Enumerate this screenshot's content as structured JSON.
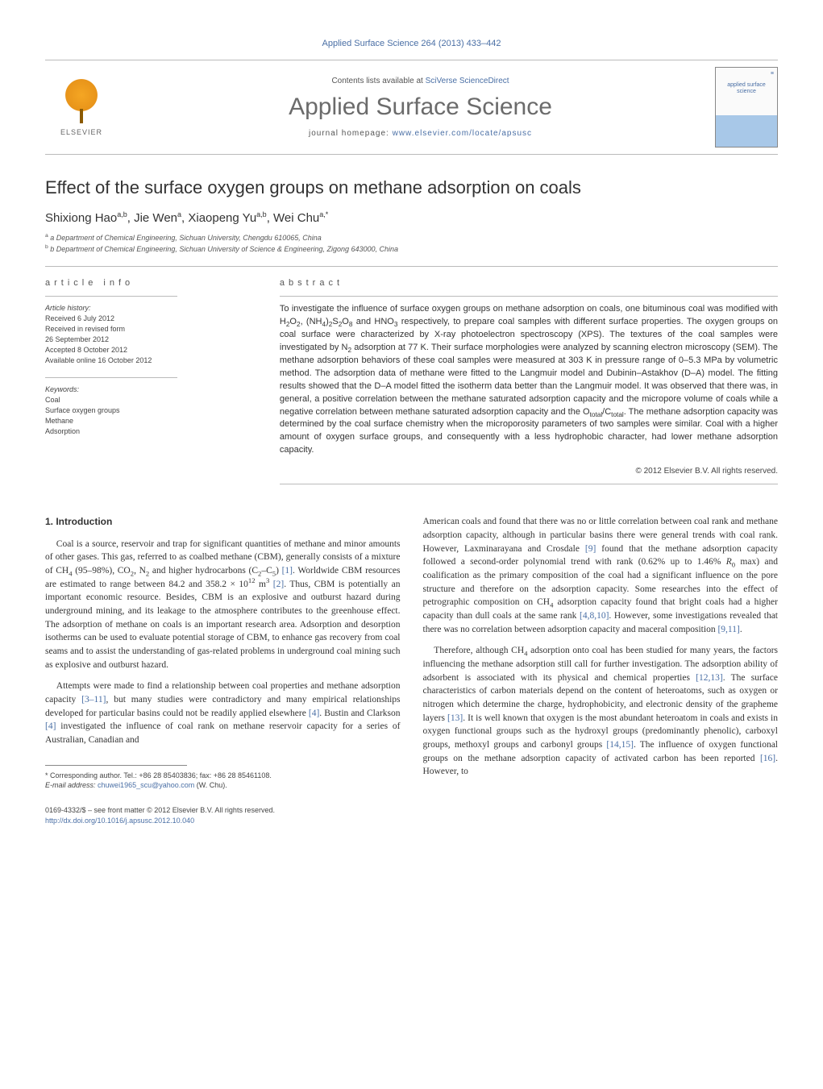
{
  "colors": {
    "link": "#4a6fa5",
    "text": "#333333",
    "muted": "#555555",
    "rule": "#bbbbbb",
    "elsevier_orange": "#f5a623"
  },
  "header": {
    "citation": "Applied Surface Science 264 (2013) 433–442",
    "contents_prefix": "Contents lists available at",
    "contents_link": "SciVerse ScienceDirect",
    "journal_title": "Applied Surface Science",
    "homepage_prefix": "journal homepage:",
    "homepage_url": "www.elsevier.com/locate/apsusc",
    "publisher": "ELSEVIER",
    "cover_text": "applied surface science"
  },
  "article": {
    "title": "Effect of the surface oxygen groups on methane adsorption on coals",
    "authors_html": "Shixiong Hao<sup>a,b</sup>, Jie Wen<sup>a</sup>, Xiaopeng Yu<sup>a,b</sup>, Wei Chu<sup>a,*</sup>",
    "affiliations": [
      "a Department of Chemical Engineering, Sichuan University, Chengdu 610065, China",
      "b Department of Chemical Engineering, Sichuan University of Science & Engineering, Zigong 643000, China"
    ]
  },
  "info": {
    "label": "article info",
    "history_label": "Article history:",
    "history": [
      "Received 6 July 2012",
      "Received in revised form",
      "26 September 2012",
      "Accepted 8 October 2012",
      "Available online 16 October 2012"
    ],
    "keywords_label": "Keywords:",
    "keywords": [
      "Coal",
      "Surface oxygen groups",
      "Methane",
      "Adsorption"
    ]
  },
  "abstract": {
    "label": "abstract",
    "text": "To investigate the influence of surface oxygen groups on methane adsorption on coals, one bituminous coal was modified with H2O2, (NH4)2S2O8 and HNO3 respectively, to prepare coal samples with different surface properties. The oxygen groups on coal surface were characterized by X-ray photoelectron spectroscopy (XPS). The textures of the coal samples were investigated by N2 adsorption at 77 K. Their surface morphologies were analyzed by scanning electron microscopy (SEM). The methane adsorption behaviors of these coal samples were measured at 303 K in pressure range of 0–5.3 MPa by volumetric method. The adsorption data of methane were fitted to the Langmuir model and Dubinin–Astakhov (D–A) model. The fitting results showed that the D–A model fitted the isotherm data better than the Langmuir model. It was observed that there was, in general, a positive correlation between the methane saturated adsorption capacity and the micropore volume of coals while a negative correlation between methane saturated adsorption capacity and the Ototal/Ctotal. The methane adsorption capacity was determined by the coal surface chemistry when the microporosity parameters of two samples were similar. Coal with a higher amount of oxygen surface groups, and consequently with a less hydrophobic character, had lower methane adsorption capacity.",
    "copyright": "© 2012 Elsevier B.V. All rights reserved."
  },
  "body": {
    "section_heading": "1.  Introduction",
    "left_paras": [
      "Coal is a source, reservoir and trap for significant quantities of methane and minor amounts of other gases. This gas, referred to as coalbed methane (CBM), generally consists of a mixture of CH4 (95–98%), CO2, N2 and higher hydrocarbons (C2–C5) [1]. Worldwide CBM resources are estimated to range between 84.2 and 358.2 × 10^12 m^3 [2]. Thus, CBM is potentially an important economic resource. Besides, CBM is an explosive and outburst hazard during underground mining, and its leakage to the atmosphere contributes to the greenhouse effect. The adsorption of methane on coals is an important research area. Adsorption and desorption isotherms can be used to evaluate potential storage of CBM, to enhance gas recovery from coal seams and to assist the understanding of gas-related problems in underground coal mining such as explosive and outburst hazard.",
      "Attempts were made to find a relationship between coal properties and methane adsorption capacity [3–11], but many studies were contradictory and many empirical relationships developed for particular basins could not be readily applied elsewhere [4]. Bustin and Clarkson [4] investigated the influence of coal rank on methane reservoir capacity for a series of Australian, Canadian and"
    ],
    "right_paras": [
      "American coals and found that there was no or little correlation between coal rank and methane adsorption capacity, although in particular basins there were general trends with coal rank. However, Laxminarayana and Crosdale [9] found that the methane adsorption capacity followed a second-order polynomial trend with rank (0.62% up to 1.46% R0 max) and coalification as the primary composition of the coal had a significant influence on the pore structure and therefore on the adsorption capacity. Some researches into the effect of petrographic composition on CH4 adsorption capacity found that bright coals had a higher capacity than dull coals at the same rank [4,8,10]. However, some investigations revealed that there was no correlation between adsorption capacity and maceral composition [9,11].",
      "Therefore, although CH4 adsorption onto coal has been studied for many years, the factors influencing the methane adsorption still call for further investigation. The adsorption ability of adsorbent is associated with its physical and chemical properties [12,13]. The surface characteristics of carbon materials depend on the content of heteroatoms, such as oxygen or nitrogen which determine the charge, hydrophobicity, and electronic density of the grapheme layers [13]. It is well known that oxygen is the most abundant heteroatom in coals and exists in oxygen functional groups such as the hydroxyl groups (predominantly phenolic), carboxyl groups, methoxyl groups and carbonyl groups [14,15]. The influence of oxygen functional groups on the methane adsorption capacity of activated carbon has been reported [16]. However, to"
    ]
  },
  "footnote": {
    "corresponding": "* Corresponding author. Tel.: +86 28 85403836; fax: +86 28 85461108.",
    "email_label": "E-mail address:",
    "email": "chuwei1965_scu@yahoo.com",
    "email_suffix": "(W. Chu)."
  },
  "footer": {
    "line1": "0169-4332/$ – see front matter © 2012 Elsevier B.V. All rights reserved.",
    "doi": "http://dx.doi.org/10.1016/j.apsusc.2012.10.040"
  }
}
